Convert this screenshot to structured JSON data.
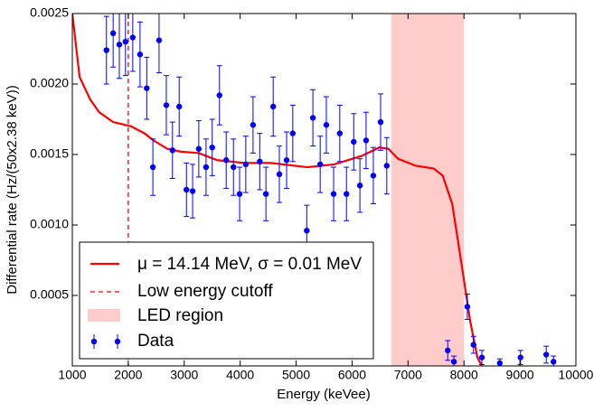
{
  "chart_data": {
    "type": "errorbar",
    "xlabel": "Energy (keVee)",
    "ylabel": "Differential rate (Hz/(50x2.38 keV))",
    "xlim": [
      1000,
      10000
    ],
    "ylim": [
      0,
      0.0025
    ],
    "xticks": [
      1000,
      2000,
      3000,
      4000,
      5000,
      6000,
      7000,
      8000,
      9000,
      10000
    ],
    "yticks": [
      0.0005,
      {
        "value": 0.001,
        "label": "0.0010"
      },
      {
        "value": 0.0015,
        "label": "0.0015"
      },
      {
        "value": 0.002,
        "label": "0.0020"
      },
      0.0025
    ],
    "legend": "lower left",
    "curve": {
      "name": "μ = 14.14 MeV, σ = 0.01 MeV",
      "color": "#ff0000",
      "x": [
        1000,
        1130,
        1320,
        1480,
        1730,
        2050,
        2290,
        2450,
        2700,
        2940,
        3260,
        3590,
        4070,
        4550,
        5200,
        5680,
        6170,
        6490,
        6650,
        6820,
        7140,
        7460,
        7620,
        7790,
        7950,
        8110,
        8240,
        8320
      ],
      "values": [
        0.0025,
        0.00205,
        0.00189,
        0.0018,
        0.00173,
        0.0017,
        0.00165,
        0.0016,
        0.00154,
        0.00152,
        0.00151,
        0.00146,
        0.00144,
        0.00144,
        0.00141,
        0.00143,
        0.00149,
        0.00155,
        0.00154,
        0.00147,
        0.00142,
        0.0014,
        0.00135,
        0.00115,
        0.00074,
        0.00032,
        6e-05,
        0
      ]
    },
    "cutoff": {
      "name": "Low energy cutoff",
      "x": 2000,
      "color": "#ff0000"
    },
    "region": {
      "name": "LED region",
      "range": [
        6700,
        8000
      ],
      "color": "#ffcccc"
    },
    "data": {
      "name": "Data",
      "color": "#0000ff",
      "x": [
        1610,
        1730,
        1840,
        1950,
        2080,
        2210,
        2330,
        2440,
        2550,
        2680,
        2790,
        2910,
        3040,
        3150,
        3260,
        3390,
        3500,
        3630,
        3750,
        3880,
        3990,
        4100,
        4230,
        4350,
        4460,
        4590,
        4700,
        4830,
        4940,
        5190,
        5300,
        5430,
        5540,
        5670,
        5780,
        5900,
        6030,
        6140,
        6250,
        6380,
        6510,
        6620,
        7710,
        7820,
        8060,
        8170,
        8320,
        8640,
        9010,
        9470,
        9600
      ],
      "values": [
        0.00224,
        0.00236,
        0.00228,
        0.0023,
        0.00233,
        0.00221,
        0.00197,
        0.00141,
        0.00231,
        0.00185,
        0.00153,
        0.00184,
        0.00125,
        0.00124,
        0.00154,
        0.00141,
        0.00155,
        0.00192,
        0.00146,
        0.00141,
        0.00122,
        0.00143,
        0.00171,
        0.00145,
        0.00122,
        0.00184,
        0.00136,
        0.00146,
        0.00165,
        0.00096,
        0.00176,
        0.00143,
        0.00171,
        0.00122,
        0.00165,
        0.00122,
        0.00159,
        0.00128,
        0.0016,
        0.00135,
        0.00173,
        0.00142,
        0.00011,
        3e-05,
        0.00042,
        0.00015,
        6e-05,
        2e-05,
        6e-05,
        8e-05,
        3e-05
      ],
      "errors": [
        0.00024,
        0.00024,
        0.00024,
        0.00024,
        0.00024,
        0.00023,
        0.00022,
        0.0002,
        0.00023,
        0.00021,
        0.0002,
        0.00021,
        0.00019,
        0.00019,
        0.0002,
        0.0002,
        0.0002,
        0.00021,
        0.0002,
        0.0002,
        0.00019,
        0.0002,
        0.0002,
        0.0002,
        0.00019,
        0.00021,
        0.0002,
        0.0002,
        0.0002,
        0.00018,
        0.0002,
        0.0002,
        0.0002,
        0.00019,
        0.0002,
        0.00019,
        0.0002,
        0.00019,
        0.0002,
        0.0002,
        0.0002,
        0.0002,
        7e-05,
        4e-05,
        9e-05,
        6e-05,
        5e-05,
        3e-05,
        5e-05,
        6e-05,
        4e-05
      ]
    }
  }
}
